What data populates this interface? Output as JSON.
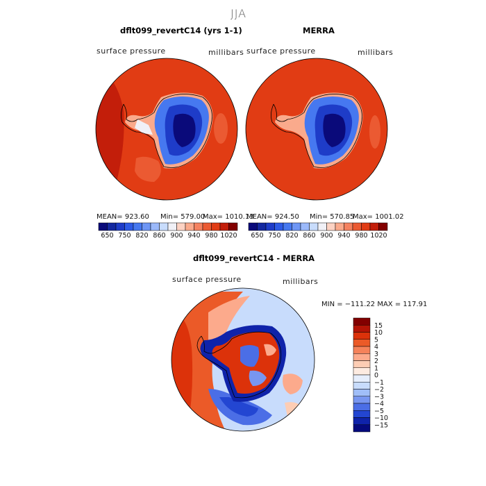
{
  "season_title": "JJA",
  "panels": [
    {
      "title": "dflt099_revertC14 (yrs 1-1)",
      "variable": "surface pressure",
      "units": "millibars",
      "stats": {
        "mean_label": "MEAN= 923.60",
        "min_label": "Min= 579.00",
        "max_label": "Max= 1010.13"
      }
    },
    {
      "title": "MERRA",
      "variable": "surface pressure",
      "units": "millibars",
      "stats": {
        "mean_label": "MEAN= 924.50",
        "min_label": "Min= 570.85",
        "max_label": "Max= 1001.02"
      }
    },
    {
      "title": "dflt099_revertC14 - MERRA",
      "variable": "surface pressure",
      "units": "millibars",
      "stats": {
        "minmax_label": "MIN = −111.22 MAX = 117.91"
      }
    }
  ],
  "chart_data": [
    {
      "type": "heatmap",
      "projection": "south-polar-stereographic",
      "title": "dflt099_revertC14 (yrs 1-1)",
      "mean": 923.6,
      "min": 579.0,
      "max": 1010.13,
      "colorbar": {
        "orientation": "horizontal",
        "levels": [
          650,
          700,
          750,
          800,
          820,
          840,
          860,
          880,
          900,
          920,
          940,
          960,
          980,
          1000,
          1020
        ],
        "tick_labels": [
          "650",
          "750",
          "820",
          "860",
          "900",
          "940",
          "980",
          "1020"
        ],
        "colors": [
          "#0a0a7a",
          "#1428a0",
          "#1e3cc8",
          "#2d5ae6",
          "#4678f0",
          "#6e96f5",
          "#9bb9fa",
          "#c8dcfc",
          "#f0f0f6",
          "#fcd2c3",
          "#faaa8c",
          "#f58260",
          "#eb5a32",
          "#e13c14",
          "#c31e0a",
          "#820000"
        ]
      }
    },
    {
      "type": "heatmap",
      "projection": "south-polar-stereographic",
      "title": "MERRA",
      "mean": 924.5,
      "min": 570.85,
      "max": 1001.02,
      "colorbar": {
        "orientation": "horizontal",
        "levels": [
          650,
          700,
          750,
          800,
          820,
          840,
          860,
          880,
          900,
          920,
          940,
          960,
          980,
          1000,
          1020
        ],
        "tick_labels": [
          "650",
          "750",
          "820",
          "860",
          "900",
          "940",
          "980",
          "1020"
        ],
        "colors": [
          "#0a0a7a",
          "#1428a0",
          "#1e3cc8",
          "#2d5ae6",
          "#4678f0",
          "#6e96f5",
          "#9bb9fa",
          "#c8dcfc",
          "#f0f0f6",
          "#fcd2c3",
          "#faaa8c",
          "#f58260",
          "#eb5a32",
          "#e13c14",
          "#c31e0a",
          "#820000"
        ]
      }
    },
    {
      "type": "heatmap",
      "projection": "south-polar-stereographic",
      "title": "dflt099_revertC14 - MERRA",
      "min": -111.22,
      "max": 117.91,
      "colorbar": {
        "orientation": "vertical",
        "tick_labels": [
          "15",
          "10",
          "5",
          "4",
          "3",
          "2",
          "1",
          "0",
          "−1",
          "−2",
          "−3",
          "−4",
          "−5",
          "−10",
          "−15"
        ],
        "colors": [
          "#820000",
          "#b41406",
          "#dc320a",
          "#eb5a28",
          "#f5825a",
          "#fcaa8c",
          "#fdcdb4",
          "#fdebe1",
          "#e6eefc",
          "#c8dcfc",
          "#a0bef8",
          "#7896f0",
          "#4b6ee6",
          "#2346d2",
          "#0f23aa",
          "#050a7d"
        ]
      }
    }
  ]
}
